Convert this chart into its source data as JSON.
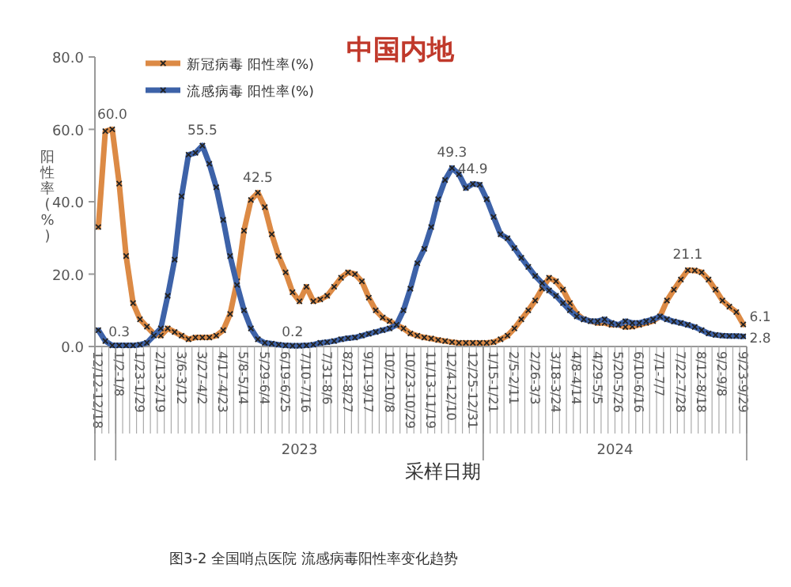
{
  "chart_data": {
    "type": "line",
    "title": "中国内地",
    "ylabel": "阳性率(%)",
    "xlabel": "采样日期",
    "categories": [
      "12/12-12/18",
      null,
      null,
      "1/2-1/8",
      null,
      null,
      "1/23-1/29",
      null,
      null,
      "2/13-2/19",
      null,
      null,
      "3/6-3/12",
      null,
      null,
      "3/27-4/2",
      null,
      null,
      "4/17-4/23",
      null,
      null,
      "5/8-5/14",
      null,
      null,
      "5/29-6/4",
      null,
      null,
      "6/19-6/25",
      null,
      null,
      "7/10-7/16",
      null,
      null,
      "7/31-8/6",
      null,
      null,
      "8/21-8/27",
      null,
      null,
      "9/11-9/17",
      null,
      null,
      "10/2-10/8",
      null,
      null,
      "10/23-10/29",
      null,
      null,
      "11/13-11/19",
      null,
      null,
      "12/4-12/10",
      null,
      null,
      "12/25-12/31",
      null,
      null,
      "1/15-1/21",
      null,
      null,
      "2/5-2/11",
      null,
      null,
      "2/26-3/3",
      null,
      null,
      "3/18-3/24",
      null,
      null,
      "4/8-4/14",
      null,
      null,
      "4/29-5/5",
      null,
      null,
      "5/20-5/26",
      null,
      null,
      "6/10-6/16",
      null,
      null,
      "7/1-7/7",
      null,
      null,
      "7/22-7/28",
      null,
      null,
      "8/12-8/18",
      null,
      null,
      "9/2-9/8",
      null,
      null,
      "9/23-9/29"
    ],
    "series": [
      {
        "name": "新冠病毒 阳性率(%)",
        "color": "#dc8a45",
        "values": [
          33,
          59.5,
          60.0,
          45,
          25,
          12,
          7.5,
          5.5,
          3.5,
          3,
          5,
          4,
          3,
          2,
          2.5,
          2.5,
          2.5,
          3,
          4.5,
          9,
          18,
          32,
          40.5,
          42.5,
          38.5,
          31,
          25,
          20.5,
          15,
          12.5,
          16.5,
          12.5,
          13,
          14,
          16.5,
          19,
          20.5,
          20,
          18,
          13.5,
          10,
          8,
          7,
          6,
          5,
          3.6,
          3,
          2.5,
          2.2,
          1.8,
          1.5,
          1.2,
          1,
          1,
          1,
          1,
          1,
          1.2,
          2,
          3,
          5,
          7.5,
          10,
          12.7,
          16,
          19,
          18,
          15.7,
          12,
          9,
          7.5,
          7,
          6.5,
          6.5,
          6,
          6,
          5.4,
          5.5,
          6,
          6.5,
          7,
          8.3,
          12.7,
          15.7,
          18.5,
          21.1,
          21,
          20.5,
          18.5,
          15.7,
          12.7,
          11,
          9.5,
          6.1
        ],
        "value_labels": [
          null,
          null,
          "60.0",
          null,
          null,
          null,
          null,
          null,
          null,
          null,
          null,
          null,
          null,
          null,
          null,
          null,
          null,
          null,
          null,
          null,
          null,
          null,
          null,
          "42.5",
          null,
          null,
          null,
          null,
          null,
          null,
          null,
          null,
          null,
          null,
          null,
          null,
          null,
          null,
          null,
          null,
          null,
          null,
          null,
          null,
          null,
          null,
          null,
          null,
          null,
          null,
          null,
          null,
          null,
          null,
          null,
          null,
          null,
          null,
          null,
          null,
          null,
          null,
          null,
          null,
          null,
          null,
          null,
          null,
          null,
          null,
          null,
          null,
          null,
          null,
          null,
          null,
          null,
          null,
          null,
          null,
          null,
          null,
          null,
          null,
          null,
          "21.1",
          null,
          null,
          null,
          null,
          null,
          null,
          null,
          "6.1"
        ]
      },
      {
        "name": "流感病毒 阳性率(%)",
        "color": "#3d62a8",
        "values": [
          4.5,
          1.5,
          0.3,
          0.3,
          0.3,
          0.3,
          0.5,
          1,
          3,
          5,
          14,
          24,
          41.5,
          53,
          53.5,
          55.5,
          50.5,
          44,
          35,
          25,
          17,
          10,
          5,
          2,
          1,
          0.8,
          0.5,
          0.3,
          0.2,
          0.2,
          0.3,
          0.5,
          1,
          1.2,
          1.5,
          2,
          2.3,
          2.5,
          3,
          3.5,
          4,
          4.5,
          5,
          6,
          10,
          16,
          23,
          27,
          33,
          40.7,
          46,
          49.3,
          47.6,
          43.8,
          44.9,
          44.7,
          40.7,
          35.8,
          31,
          29.9,
          27.2,
          24.5,
          22,
          19.5,
          17.5,
          15.5,
          14,
          12,
          10,
          8.3,
          7.5,
          7,
          7,
          7.5,
          6.5,
          6,
          7,
          6.5,
          6.5,
          7,
          7.5,
          8.3,
          7.5,
          6.9,
          6.5,
          6,
          5.4,
          4.5,
          3.6,
          3.2,
          3,
          2.9,
          2.9,
          2.8
        ],
        "value_labels": [
          null,
          null,
          null,
          "0.3",
          null,
          null,
          null,
          null,
          null,
          null,
          null,
          null,
          null,
          null,
          null,
          "55.5",
          null,
          null,
          null,
          null,
          null,
          null,
          null,
          null,
          null,
          null,
          null,
          null,
          "0.2",
          null,
          null,
          null,
          null,
          null,
          null,
          null,
          null,
          null,
          null,
          null,
          null,
          null,
          null,
          null,
          null,
          null,
          null,
          null,
          null,
          null,
          null,
          "49.3",
          null,
          null,
          "44.9",
          null,
          null,
          null,
          null,
          null,
          null,
          null,
          null,
          null,
          null,
          null,
          null,
          null,
          null,
          null,
          null,
          null,
          null,
          null,
          null,
          null,
          null,
          null,
          null,
          null,
          null,
          null,
          null,
          null,
          null,
          null,
          null,
          null,
          null,
          null,
          null,
          null,
          null,
          "2.8"
        ]
      }
    ],
    "ylim": [
      0,
      80
    ],
    "yticks": [
      {
        "value": 0,
        "label": "0.0"
      },
      {
        "value": 20,
        "label": "20.0"
      },
      {
        "value": 40,
        "label": "40.0"
      },
      {
        "value": 60,
        "label": "60.0"
      },
      {
        "value": 80,
        "label": "80.0"
      }
    ],
    "marker": "cross",
    "legend": "top left",
    "grid": false,
    "annotations": [
      "2023",
      "2024",
      "图3-2 全国哨点医院 流感病毒阳性率变化趋势"
    ]
  }
}
